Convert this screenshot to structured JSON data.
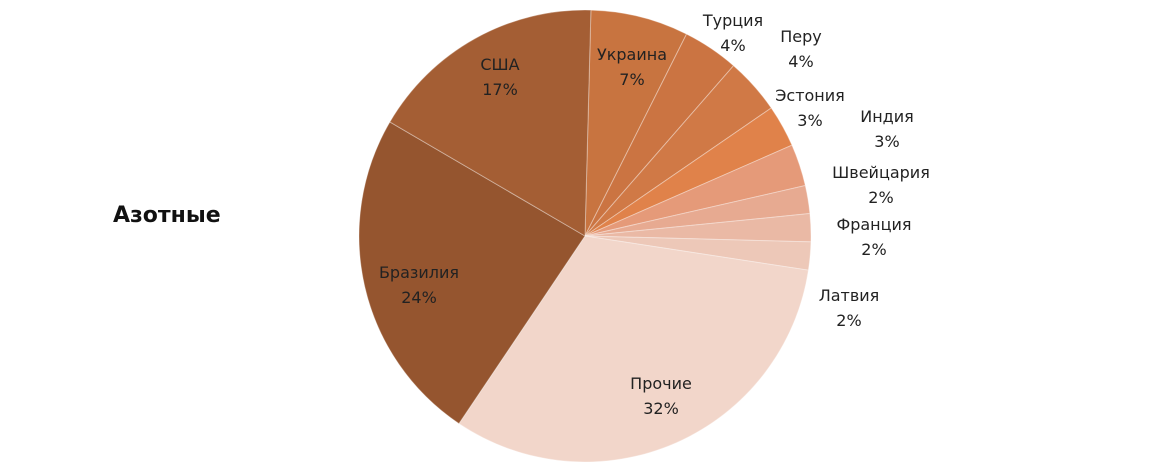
{
  "chart_data": {
    "type": "pie",
    "title": "Азотные",
    "slices": [
      {
        "name": "Украина",
        "value": 7,
        "label": "7%",
        "color": "#C87440"
      },
      {
        "name": "Турция",
        "value": 4,
        "label": "4%",
        "color": "#CB7442"
      },
      {
        "name": "Перу",
        "value": 4,
        "label": "4%",
        "color": "#D07946"
      },
      {
        "name": "Эстония",
        "value": 3,
        "label": "3%",
        "color": "#E0824A"
      },
      {
        "name": "Индия",
        "value": 3,
        "label": "3%",
        "color": "#E59A79"
      },
      {
        "name": "Швейцария",
        "value": 2,
        "label": "2%",
        "color": "#E7AA91"
      },
      {
        "name": "Франция",
        "value": 2,
        "label": "2%",
        "color": "#EAB9A5"
      },
      {
        "name": "Латвия",
        "value": 2,
        "label": "2%",
        "color": "#EDC8B8"
      },
      {
        "name": "Прочие",
        "value": 32,
        "label": "32%",
        "color": "#F2D6CA"
      },
      {
        "name": "Бразилия",
        "value": 24,
        "label": "24%",
        "color": "#95552F"
      },
      {
        "name": "США",
        "value": 17,
        "label": "17%",
        "color": "#A45E34"
      }
    ]
  }
}
